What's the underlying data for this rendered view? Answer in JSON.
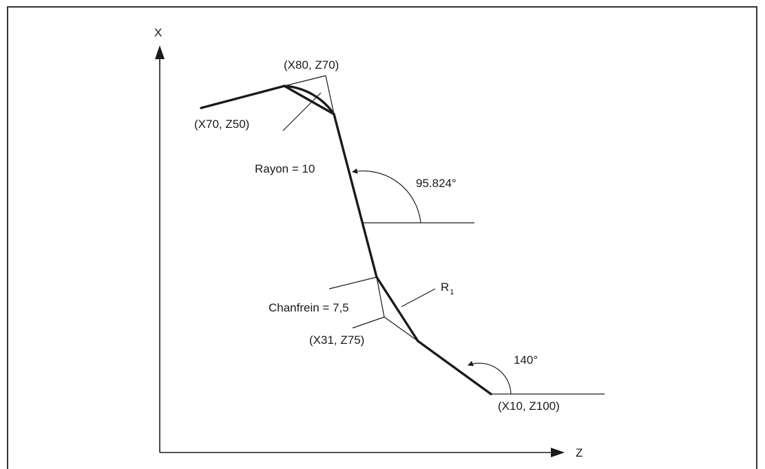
{
  "axes": {
    "x_label": "X",
    "z_label": "Z"
  },
  "points": {
    "p1": "(X80, Z70)",
    "p2": "(X70, Z50)",
    "p3": "(X31, Z75)",
    "p4": "(X10, Z100)"
  },
  "annotations": {
    "radius": "Rayon = 10",
    "chamfer": "Chanfrein = 7,5",
    "angle1": "95.824°",
    "angle2": "140°",
    "r_main": "R",
    "r_sub": "1"
  },
  "colors": {
    "stroke": "#1a1a1a",
    "frame": "#333333"
  }
}
